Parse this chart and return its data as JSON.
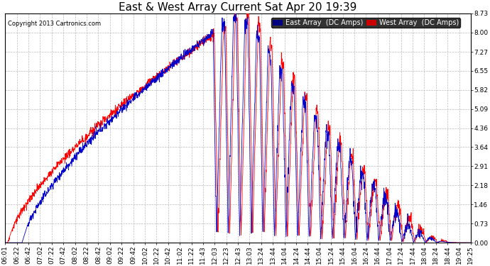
{
  "title": "East & West Array Current Sat Apr 20 19:39",
  "copyright": "Copyright 2013 Cartronics.com",
  "ylabel_right": [
    "0.00",
    "0.73",
    "1.46",
    "2.18",
    "2.91",
    "3.64",
    "4.36",
    "5.09",
    "5.82",
    "6.55",
    "7.27",
    "8.00",
    "8.73"
  ],
  "ymin": 0.0,
  "ymax": 8.73,
  "x_tick_labels": [
    "06:01",
    "06:22",
    "06:42",
    "07:02",
    "07:22",
    "07:42",
    "08:02",
    "08:22",
    "08:42",
    "09:02",
    "09:22",
    "09:42",
    "10:02",
    "10:22",
    "10:42",
    "11:02",
    "11:22",
    "11:43",
    "12:03",
    "12:23",
    "12:43",
    "13:03",
    "13:24",
    "13:44",
    "14:04",
    "14:24",
    "14:44",
    "15:04",
    "15:24",
    "15:44",
    "16:04",
    "16:24",
    "16:44",
    "17:04",
    "17:24",
    "17:44",
    "18:04",
    "18:24",
    "18:44",
    "19:04",
    "19:25"
  ],
  "east_color": "#0000cc",
  "west_color": "#ff0000",
  "bg_color": "#ffffff",
  "grid_color": "#bbbbbb",
  "legend_east_bg": "#000080",
  "legend_west_bg": "#cc0000",
  "title_fontsize": 11,
  "tick_fontsize": 6.5,
  "legend_fontsize": 7
}
